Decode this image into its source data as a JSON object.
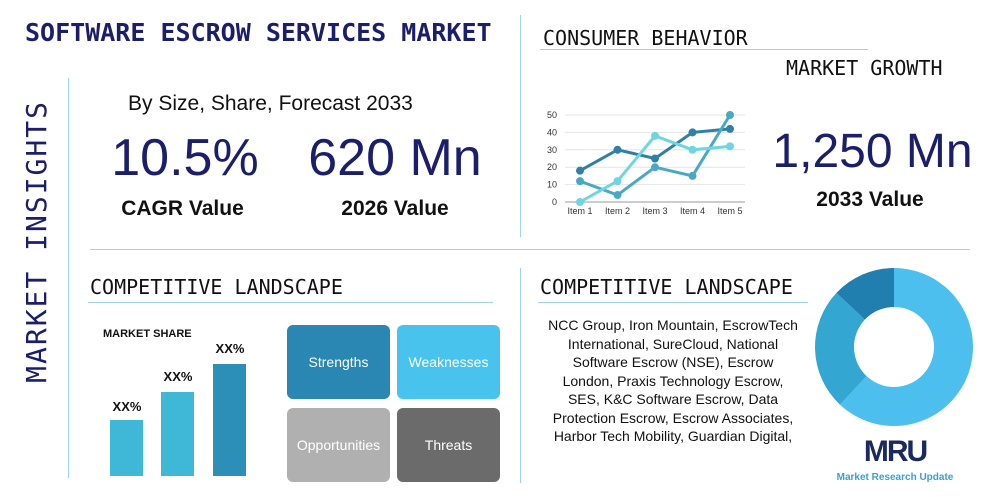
{
  "title": "SOFTWARE ESCROW SERVICES MARKET",
  "side_label": "MARKET INSIGHTS",
  "subtitle": "By Size, Share, Forecast 2033",
  "stats": [
    {
      "value": "10.5%",
      "label": "CAGR Value"
    },
    {
      "value": "620 Mn",
      "label": "2026 Value"
    },
    {
      "value": "1,250 Mn",
      "label": "2033 Value"
    }
  ],
  "consumer": {
    "heading": "CONSUMER BEHAVIOR",
    "sub": "MARKET GROWTH"
  },
  "chart_data": {
    "type": "line",
    "categories": [
      "Item 1",
      "Item 2",
      "Item 3",
      "Item 4",
      "Item 5"
    ],
    "ylim": [
      0,
      50
    ],
    "yticks": [
      "0",
      "10",
      "20",
      "30",
      "40",
      "50"
    ],
    "grid": true,
    "series": [
      {
        "values": [
          18,
          30,
          25,
          40,
          42
        ],
        "color": "#2f7fa6"
      },
      {
        "values": [
          12,
          4,
          20,
          15,
          50
        ],
        "color": "#48a9c5"
      },
      {
        "values": [
          0,
          12,
          38,
          30,
          32
        ],
        "color": "#6fd6e0"
      }
    ]
  },
  "landscape_left": {
    "heading": "COMPETITIVE LANDSCAPE",
    "market_share": "MARKET SHARE",
    "bars": [
      {
        "label": "XX%",
        "value": 0.5
      },
      {
        "label": "XX%",
        "value": 0.73
      },
      {
        "label": "XX%",
        "value": 1.0
      }
    ],
    "swot": [
      "Strengths",
      "Weaknesses",
      "Opportunities",
      "Threats"
    ]
  },
  "landscape_right": {
    "heading": "COMPETITIVE LANDSCAPE",
    "companies": "NCC Group, Iron Mountain, EscrowTech International, SureCloud, National Software Escrow (NSE), Escrow London, Praxis Technology Escrow, SES, K&C Software Escrow, Data Protection Escrow, Escrow Associates, Harbor Tech Mobility, Guardian Digital,"
  },
  "donut": [
    {
      "value": 62,
      "color": "#4dbfef"
    },
    {
      "value": 25,
      "color": "#34a6d2"
    },
    {
      "value": 13,
      "color": "#217fb0"
    }
  ],
  "logo": {
    "mark": "MRU",
    "text": "Market Research Update"
  }
}
